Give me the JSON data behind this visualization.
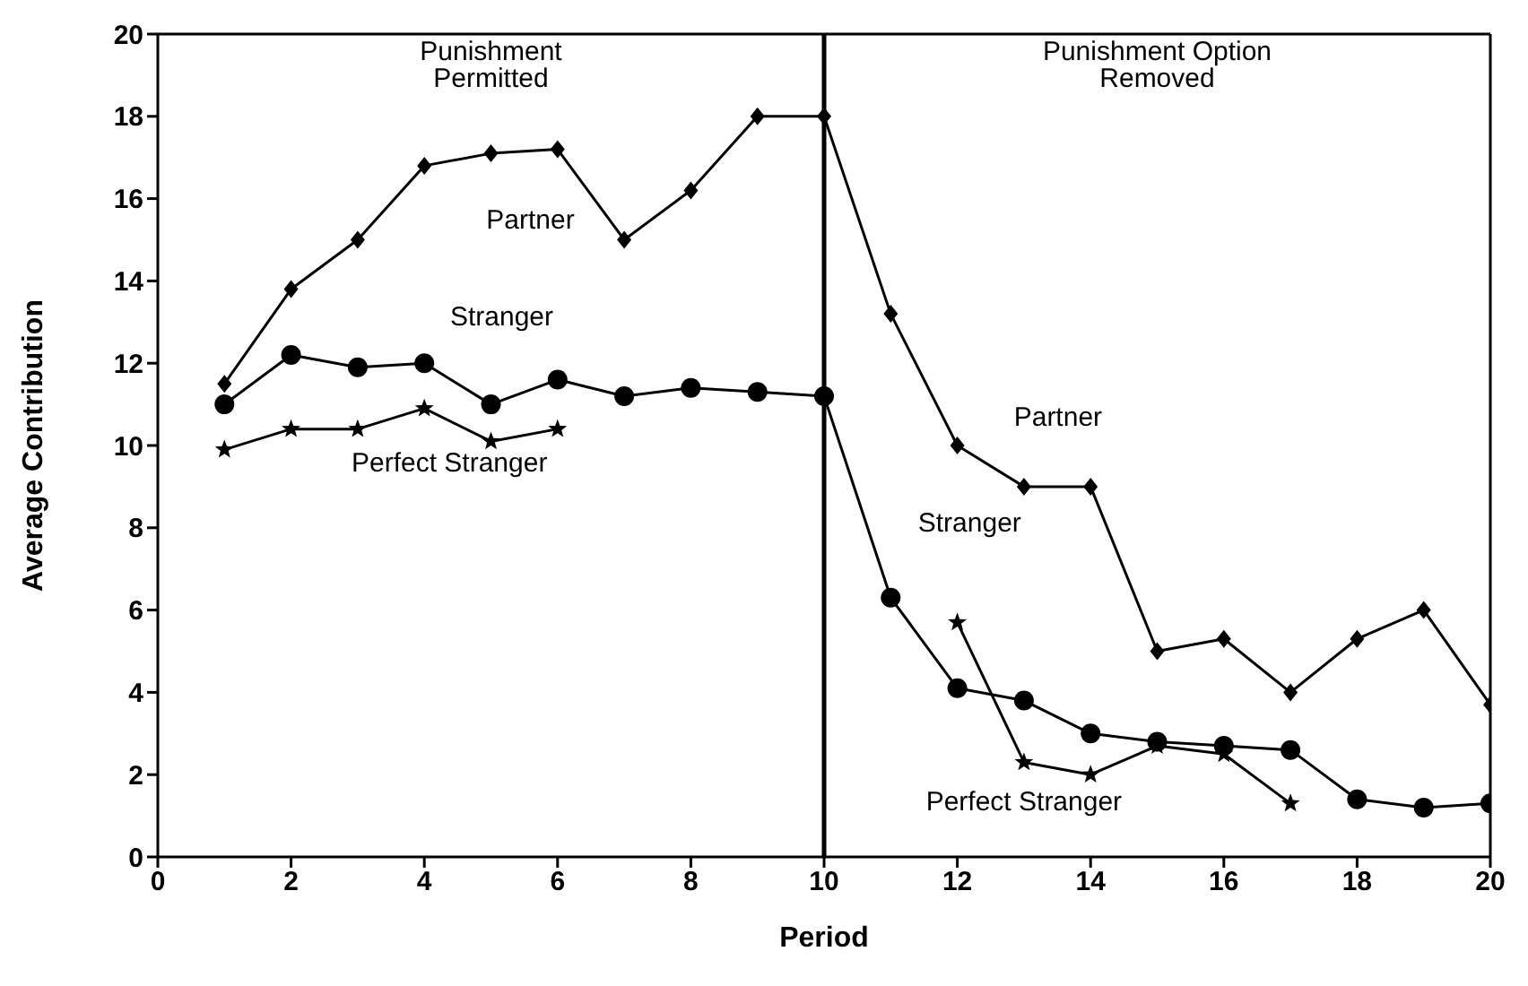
{
  "chart_data": {
    "type": "line",
    "xlabel": "Period",
    "ylabel": "Average Contribution",
    "x": [
      1,
      2,
      3,
      4,
      5,
      6,
      7,
      8,
      9,
      10,
      11,
      12,
      13,
      14,
      15,
      16,
      17,
      18,
      19,
      20
    ],
    "series": [
      {
        "name": "Partner",
        "color": "#000000",
        "marker": "diamond",
        "values": [
          11.5,
          13.8,
          15.0,
          16.8,
          17.1,
          17.2,
          15.0,
          16.2,
          18.0,
          18.0,
          13.2,
          10.0,
          9.0,
          9.0,
          5.0,
          5.3,
          4.0,
          5.3,
          6.0,
          3.7
        ]
      },
      {
        "name": "Stranger",
        "color": "#000000",
        "marker": "circle",
        "values": [
          11.0,
          12.2,
          11.9,
          12.0,
          11.0,
          11.6,
          11.2,
          11.4,
          11.3,
          11.2,
          6.3,
          4.1,
          3.8,
          3.0,
          2.8,
          2.7,
          2.6,
          1.4,
          1.2,
          1.3
        ]
      },
      {
        "name": "Perfect Stranger",
        "color": "#000000",
        "marker": "star",
        "values": [
          9.9,
          10.4,
          10.4,
          10.9,
          10.1,
          10.4,
          null,
          null,
          null,
          null,
          null,
          5.7,
          2.3,
          2.0,
          2.7,
          2.5,
          1.3,
          null,
          null,
          null
        ]
      }
    ],
    "xlim": [
      0,
      20
    ],
    "xticks": [
      0,
      2,
      4,
      6,
      8,
      10,
      12,
      14,
      16,
      18,
      20
    ],
    "ylim": [
      0,
      20
    ],
    "yticks": [
      0,
      2,
      4,
      6,
      8,
      10,
      12,
      14,
      16,
      18,
      20
    ],
    "ref_lines": [
      {
        "axis": "x",
        "value": 10,
        "color": "#000000"
      }
    ],
    "annotations": [
      "Punishment Permitted",
      "Punishment Option Removed"
    ]
  }
}
